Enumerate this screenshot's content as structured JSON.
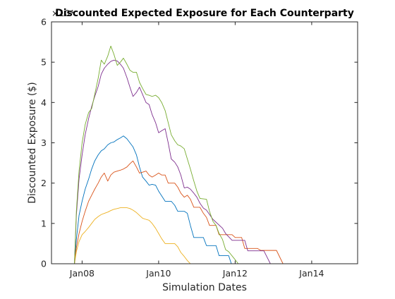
{
  "chart_data": {
    "type": "line",
    "title": "Discounted Expected Exposure for Each Counterparty",
    "xlabel": "Simulation Dates",
    "ylabel": "Discounted Exposure ($)",
    "y_exponent_label": "×10⁴",
    "xlim": [
      2007.2,
      2015.2
    ],
    "ylim": [
      0,
      6
    ],
    "x_ticks": [
      2008,
      2010,
      2012,
      2014
    ],
    "x_tick_labels": [
      "Jan08",
      "Jan10",
      "Jan12",
      "Jan14"
    ],
    "y_ticks": [
      0,
      1,
      2,
      3,
      4,
      5,
      6
    ],
    "y_tick_labels": [
      "0",
      "1",
      "2",
      "3",
      "4",
      "5",
      "6"
    ],
    "grid": false,
    "box": true,
    "series": [
      {
        "color": "#0072BD",
        "points": [
          [
            2007.8,
            0.0
          ],
          [
            2007.85,
            0.6
          ],
          [
            2007.92,
            1.2
          ],
          [
            2008.0,
            1.55
          ],
          [
            2008.08,
            1.85
          ],
          [
            2008.17,
            2.1
          ],
          [
            2008.25,
            2.35
          ],
          [
            2008.33,
            2.55
          ],
          [
            2008.42,
            2.7
          ],
          [
            2008.5,
            2.8
          ],
          [
            2008.58,
            2.85
          ],
          [
            2008.67,
            2.95
          ],
          [
            2008.75,
            3.0
          ],
          [
            2008.83,
            3.02
          ],
          [
            2008.92,
            3.08
          ],
          [
            2009.0,
            3.12
          ],
          [
            2009.08,
            3.17
          ],
          [
            2009.17,
            3.1
          ],
          [
            2009.25,
            3.0
          ],
          [
            2009.33,
            2.9
          ],
          [
            2009.42,
            2.7
          ],
          [
            2009.5,
            2.4
          ],
          [
            2009.58,
            2.15
          ],
          [
            2009.67,
            2.05
          ],
          [
            2009.75,
            1.95
          ],
          [
            2009.83,
            1.97
          ],
          [
            2009.92,
            1.95
          ],
          [
            2010.0,
            1.8
          ],
          [
            2010.17,
            1.55
          ],
          [
            2010.33,
            1.55
          ],
          [
            2010.42,
            1.45
          ],
          [
            2010.5,
            1.3
          ],
          [
            2010.67,
            1.3
          ],
          [
            2010.75,
            1.25
          ],
          [
            2010.83,
            0.95
          ],
          [
            2010.92,
            0.65
          ],
          [
            2011.17,
            0.65
          ],
          [
            2011.25,
            0.45
          ],
          [
            2011.5,
            0.45
          ],
          [
            2011.58,
            0.2
          ],
          [
            2011.83,
            0.2
          ],
          [
            2011.9,
            0.0
          ]
        ]
      },
      {
        "color": "#D95319",
        "points": [
          [
            2007.8,
            0.0
          ],
          [
            2007.85,
            0.4
          ],
          [
            2007.92,
            0.75
          ],
          [
            2008.0,
            1.05
          ],
          [
            2008.08,
            1.3
          ],
          [
            2008.17,
            1.55
          ],
          [
            2008.25,
            1.7
          ],
          [
            2008.33,
            1.85
          ],
          [
            2008.42,
            2.0
          ],
          [
            2008.5,
            2.15
          ],
          [
            2008.58,
            2.25
          ],
          [
            2008.67,
            2.05
          ],
          [
            2008.75,
            2.2
          ],
          [
            2008.83,
            2.27
          ],
          [
            2008.92,
            2.3
          ],
          [
            2009.0,
            2.32
          ],
          [
            2009.08,
            2.35
          ],
          [
            2009.17,
            2.4
          ],
          [
            2009.25,
            2.48
          ],
          [
            2009.33,
            2.55
          ],
          [
            2009.42,
            2.4
          ],
          [
            2009.5,
            2.25
          ],
          [
            2009.58,
            2.27
          ],
          [
            2009.67,
            2.3
          ],
          [
            2009.75,
            2.2
          ],
          [
            2009.83,
            2.15
          ],
          [
            2009.92,
            2.2
          ],
          [
            2010.0,
            2.25
          ],
          [
            2010.08,
            2.2
          ],
          [
            2010.17,
            2.2
          ],
          [
            2010.25,
            2.0
          ],
          [
            2010.42,
            2.0
          ],
          [
            2010.5,
            1.9
          ],
          [
            2010.58,
            1.75
          ],
          [
            2010.67,
            1.65
          ],
          [
            2010.75,
            1.7
          ],
          [
            2010.83,
            1.6
          ],
          [
            2010.92,
            1.4
          ],
          [
            2011.08,
            1.4
          ],
          [
            2011.17,
            1.25
          ],
          [
            2011.25,
            1.15
          ],
          [
            2011.33,
            0.95
          ],
          [
            2011.5,
            0.95
          ],
          [
            2011.58,
            0.72
          ],
          [
            2011.92,
            0.72
          ],
          [
            2012.0,
            0.65
          ],
          [
            2012.17,
            0.65
          ],
          [
            2012.25,
            0.38
          ],
          [
            2012.58,
            0.38
          ],
          [
            2012.67,
            0.33
          ],
          [
            2013.08,
            0.33
          ],
          [
            2013.25,
            0.0
          ]
        ]
      },
      {
        "color": "#EDB120",
        "points": [
          [
            2007.8,
            0.0
          ],
          [
            2007.85,
            0.3
          ],
          [
            2007.92,
            0.55
          ],
          [
            2008.0,
            0.72
          ],
          [
            2008.08,
            0.8
          ],
          [
            2008.17,
            0.9
          ],
          [
            2008.25,
            1.0
          ],
          [
            2008.33,
            1.1
          ],
          [
            2008.42,
            1.17
          ],
          [
            2008.5,
            1.22
          ],
          [
            2008.58,
            1.25
          ],
          [
            2008.67,
            1.28
          ],
          [
            2008.75,
            1.32
          ],
          [
            2008.83,
            1.35
          ],
          [
            2008.92,
            1.37
          ],
          [
            2009.0,
            1.39
          ],
          [
            2009.17,
            1.39
          ],
          [
            2009.25,
            1.37
          ],
          [
            2009.33,
            1.33
          ],
          [
            2009.42,
            1.27
          ],
          [
            2009.5,
            1.2
          ],
          [
            2009.58,
            1.13
          ],
          [
            2009.67,
            1.1
          ],
          [
            2009.75,
            1.08
          ],
          [
            2009.83,
            1.0
          ],
          [
            2009.92,
            0.88
          ],
          [
            2010.0,
            0.75
          ],
          [
            2010.08,
            0.62
          ],
          [
            2010.17,
            0.5
          ],
          [
            2010.42,
            0.5
          ],
          [
            2010.5,
            0.42
          ],
          [
            2010.58,
            0.28
          ],
          [
            2010.67,
            0.18
          ],
          [
            2010.75,
            0.08
          ],
          [
            2010.83,
            0.0
          ]
        ]
      },
      {
        "color": "#7E2F8E",
        "points": [
          [
            2007.8,
            0.0
          ],
          [
            2007.85,
            1.2
          ],
          [
            2007.92,
            2.1
          ],
          [
            2008.0,
            2.7
          ],
          [
            2008.08,
            3.2
          ],
          [
            2008.17,
            3.6
          ],
          [
            2008.25,
            3.9
          ],
          [
            2008.33,
            4.15
          ],
          [
            2008.42,
            4.4
          ],
          [
            2008.5,
            4.7
          ],
          [
            2008.58,
            4.85
          ],
          [
            2008.67,
            4.95
          ],
          [
            2008.75,
            5.02
          ],
          [
            2008.83,
            5.05
          ],
          [
            2008.92,
            5.03
          ],
          [
            2009.0,
            4.95
          ],
          [
            2009.08,
            4.85
          ],
          [
            2009.17,
            4.62
          ],
          [
            2009.25,
            4.38
          ],
          [
            2009.33,
            4.15
          ],
          [
            2009.42,
            4.25
          ],
          [
            2009.5,
            4.38
          ],
          [
            2009.58,
            4.2
          ],
          [
            2009.67,
            4.0
          ],
          [
            2009.75,
            3.95
          ],
          [
            2009.83,
            3.7
          ],
          [
            2009.92,
            3.5
          ],
          [
            2010.0,
            3.25
          ],
          [
            2010.08,
            3.3
          ],
          [
            2010.17,
            3.35
          ],
          [
            2010.25,
            3.0
          ],
          [
            2010.33,
            2.6
          ],
          [
            2010.42,
            2.52
          ],
          [
            2010.5,
            2.4
          ],
          [
            2010.58,
            2.2
          ],
          [
            2010.67,
            1.88
          ],
          [
            2010.75,
            1.9
          ],
          [
            2010.83,
            1.85
          ],
          [
            2010.92,
            1.75
          ],
          [
            2011.0,
            1.65
          ],
          [
            2011.08,
            1.5
          ],
          [
            2011.17,
            1.38
          ],
          [
            2011.25,
            1.33
          ],
          [
            2011.42,
            1.1
          ],
          [
            2011.67,
            0.88
          ],
          [
            2011.75,
            0.75
          ],
          [
            2011.92,
            0.58
          ],
          [
            2012.25,
            0.58
          ],
          [
            2012.33,
            0.32
          ],
          [
            2012.75,
            0.32
          ],
          [
            2012.92,
            0.0
          ]
        ]
      },
      {
        "color": "#77AC30",
        "points": [
          [
            2007.8,
            0.0
          ],
          [
            2007.85,
            1.3
          ],
          [
            2007.92,
            2.3
          ],
          [
            2008.0,
            3.0
          ],
          [
            2008.08,
            3.45
          ],
          [
            2008.17,
            3.75
          ],
          [
            2008.25,
            3.85
          ],
          [
            2008.33,
            4.2
          ],
          [
            2008.42,
            4.6
          ],
          [
            2008.5,
            5.05
          ],
          [
            2008.58,
            4.95
          ],
          [
            2008.67,
            5.15
          ],
          [
            2008.75,
            5.4
          ],
          [
            2008.83,
            5.2
          ],
          [
            2008.92,
            4.92
          ],
          [
            2009.0,
            5.0
          ],
          [
            2009.08,
            5.1
          ],
          [
            2009.17,
            4.95
          ],
          [
            2009.25,
            4.8
          ],
          [
            2009.33,
            4.75
          ],
          [
            2009.42,
            4.75
          ],
          [
            2009.5,
            4.5
          ],
          [
            2009.58,
            4.35
          ],
          [
            2009.67,
            4.2
          ],
          [
            2009.75,
            4.18
          ],
          [
            2009.83,
            4.15
          ],
          [
            2009.92,
            4.18
          ],
          [
            2010.0,
            4.12
          ],
          [
            2010.08,
            4.0
          ],
          [
            2010.17,
            3.8
          ],
          [
            2010.25,
            3.5
          ],
          [
            2010.33,
            3.2
          ],
          [
            2010.42,
            3.05
          ],
          [
            2010.5,
            2.95
          ],
          [
            2010.58,
            2.92
          ],
          [
            2010.67,
            2.85
          ],
          [
            2010.75,
            2.6
          ],
          [
            2010.83,
            2.35
          ],
          [
            2010.92,
            2.05
          ],
          [
            2011.0,
            1.8
          ],
          [
            2011.08,
            1.62
          ],
          [
            2011.25,
            1.6
          ],
          [
            2011.33,
            1.3
          ],
          [
            2011.42,
            1.05
          ],
          [
            2011.5,
            0.95
          ],
          [
            2011.58,
            0.75
          ],
          [
            2011.67,
            0.6
          ],
          [
            2011.75,
            0.35
          ],
          [
            2011.83,
            0.3
          ],
          [
            2012.0,
            0.1
          ],
          [
            2012.08,
            0.0
          ]
        ]
      }
    ]
  }
}
